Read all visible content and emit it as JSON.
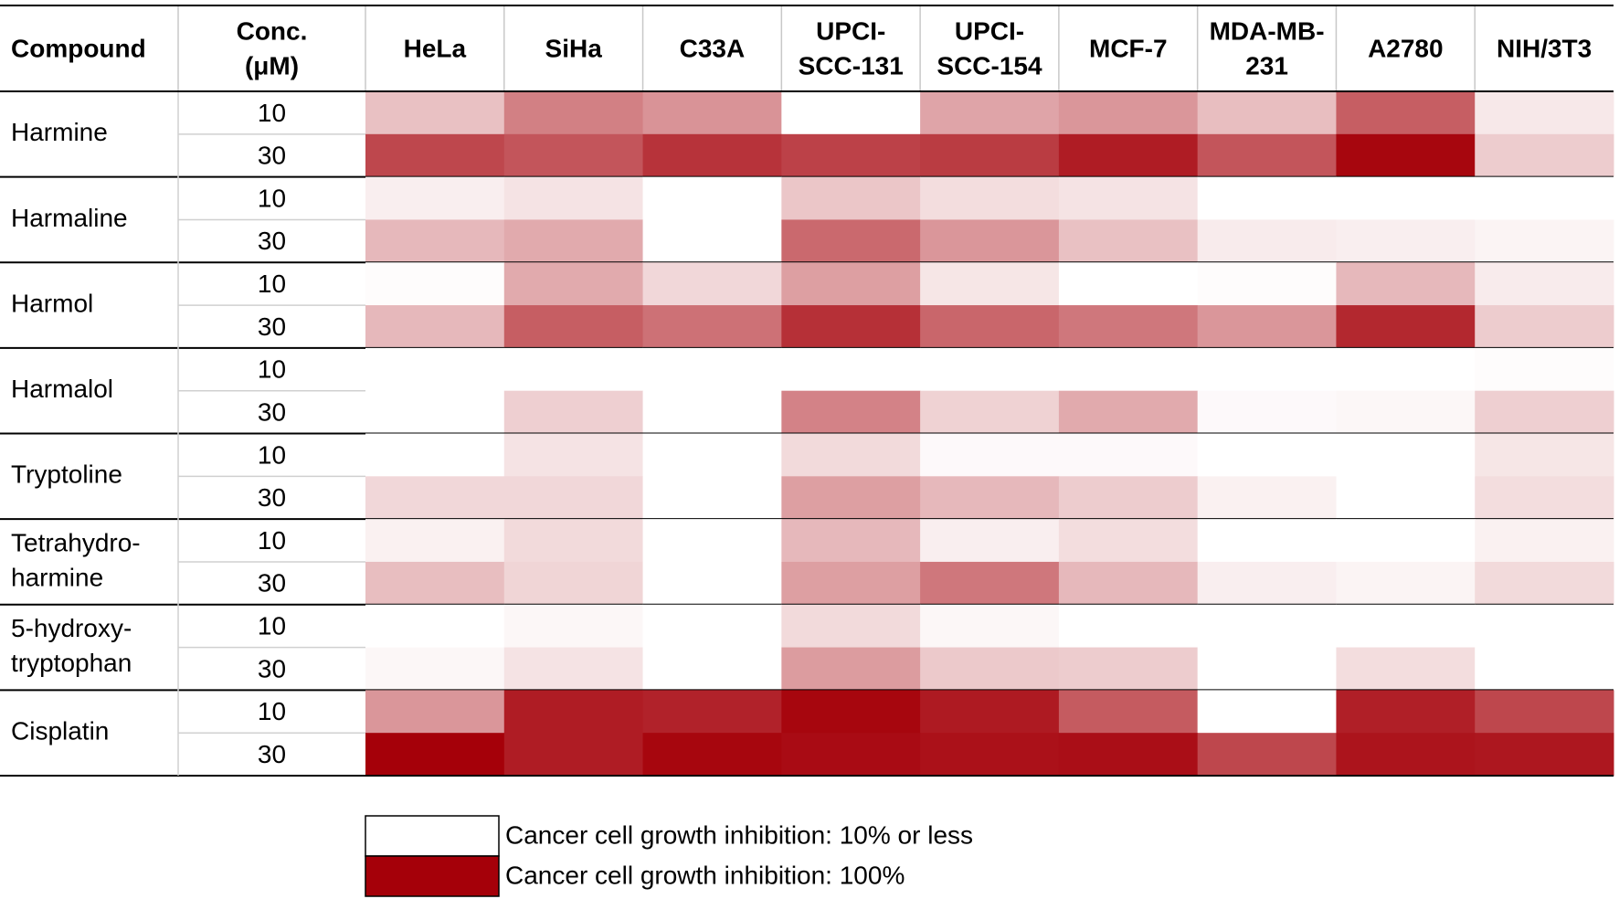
{
  "chart_data": {
    "type": "heatmap",
    "column_labels": [
      [
        "Compound"
      ],
      [
        "Conc.",
        "(μM)"
      ],
      [
        "HeLa"
      ],
      [
        "SiHa"
      ],
      [
        "C33A"
      ],
      [
        "UPCI-",
        "SCC-131"
      ],
      [
        "UPCI-",
        "SCC-154"
      ],
      [
        "MCF-7"
      ],
      [
        "MDA-MB-",
        "231"
      ],
      [
        "A2780"
      ],
      [
        "NIH/3T3"
      ]
    ],
    "rows": [
      {
        "compound": [
          "Harmine"
        ],
        "concentrations": [
          10,
          30
        ],
        "values": [
          [
            32,
            55,
            48,
            10,
            42,
            47,
            33,
            67,
            18
          ],
          [
            75,
            70,
            82,
            77,
            79,
            90,
            70,
            98,
            28
          ]
        ]
      },
      {
        "compound": [
          "Harmaline"
        ],
        "concentrations": [
          10,
          30
        ],
        "values": [
          [
            16,
            20,
            10,
            30,
            22,
            20,
            10,
            10,
            10
          ],
          [
            35,
            40,
            10,
            63,
            47,
            32,
            17,
            16,
            14
          ]
        ]
      },
      {
        "compound": [
          "Harmol"
        ],
        "concentrations": [
          10,
          30
        ],
        "values": [
          [
            11,
            40,
            24,
            44,
            19,
            10,
            11,
            35,
            17
          ],
          [
            35,
            67,
            60,
            83,
            64,
            58,
            47,
            86,
            28
          ]
        ]
      },
      {
        "compound": [
          "Harmalol"
        ],
        "concentrations": [
          10,
          30
        ],
        "values": [
          [
            10,
            10,
            10,
            10,
            10,
            10,
            10,
            10,
            11
          ],
          [
            10,
            27,
            10,
            54,
            26,
            40,
            12,
            13,
            27
          ]
        ]
      },
      {
        "compound": [
          "Tryptoline"
        ],
        "concentrations": [
          10,
          30
        ],
        "values": [
          [
            10,
            20,
            10,
            23,
            12,
            12,
            10,
            10,
            19
          ],
          [
            24,
            24,
            10,
            44,
            35,
            28,
            15,
            10,
            22
          ]
        ]
      },
      {
        "compound": [
          "Tetrahydro-",
          "harmine"
        ],
        "concentrations": [
          10,
          30
        ],
        "values": [
          [
            15,
            23,
            10,
            35,
            16,
            22,
            10,
            10,
            15
          ],
          [
            33,
            25,
            10,
            44,
            58,
            35,
            16,
            14,
            23
          ]
        ]
      },
      {
        "compound": [
          "5-hydroxy-",
          "tryptophan"
        ],
        "concentrations": [
          10,
          30
        ],
        "values": [
          [
            10,
            13,
            10,
            23,
            13,
            10,
            10,
            10,
            10
          ],
          [
            13,
            20,
            10,
            45,
            29,
            28,
            10,
            22,
            10
          ]
        ]
      },
      {
        "compound": [
          "Cisplatin"
        ],
        "concentrations": [
          10,
          30
        ],
        "values": [
          [
            47,
            90,
            88,
            98,
            91,
            68,
            10,
            89,
            75
          ],
          [
            100,
            90,
            98,
            96,
            94,
            95,
            75,
            93,
            92
          ]
        ]
      }
    ],
    "low_color": "#ffffff",
    "high_color": "#a50009",
    "legend": [
      {
        "value": 10,
        "label": "Cancer cell growth inhibition: 10% or less"
      },
      {
        "value": 100,
        "label": "Cancer cell growth inhibition: 100%"
      }
    ]
  }
}
